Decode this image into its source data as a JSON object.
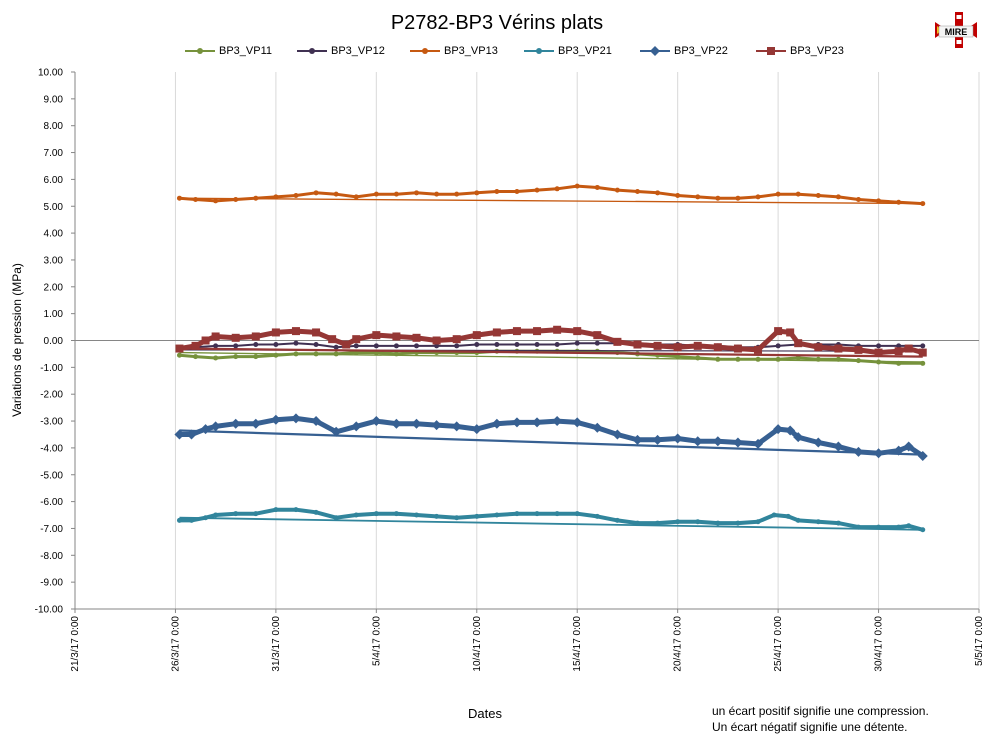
{
  "chart_data": {
    "type": "line",
    "title": "P2782-BP3 Vérins plats",
    "xlabel": "Dates",
    "ylabel": "Variations de pression (MPa)",
    "ylim": [
      -10,
      10
    ],
    "ytick_labels": [
      "10.00",
      "9.00",
      "8.00",
      "7.00",
      "6.00",
      "5.00",
      "4.00",
      "3.00",
      "2.00",
      "1.00",
      "0.00",
      "-1.00",
      "-2.00",
      "-3.00",
      "-4.00",
      "-5.00",
      "-6.00",
      "-7.00",
      "-8.00",
      "-9.00",
      "-10.00"
    ],
    "xlim_days": [
      0,
      45
    ],
    "xticks": [
      {
        "day": 0,
        "label": "21/3/17 0:00"
      },
      {
        "day": 5,
        "label": "26/3/17 0:00"
      },
      {
        "day": 10,
        "label": "31/3/17 0:00"
      },
      {
        "day": 15,
        "label": "5/4/17 0:00"
      },
      {
        "day": 20,
        "label": "10/4/17 0:00"
      },
      {
        "day": 25,
        "label": "15/4/17 0:00"
      },
      {
        "day": 30,
        "label": "20/4/17 0:00"
      },
      {
        "day": 35,
        "label": "25/4/17 0:00"
      },
      {
        "day": 40,
        "label": "30/4/17 0:00"
      },
      {
        "day": 45,
        "label": "5/5/17 0:00"
      }
    ],
    "grid": "vertical",
    "legend": "top",
    "series": [
      {
        "name": "BP3_VP11",
        "color": "#76923c",
        "marker": "circle",
        "width": 3,
        "trend": [
          [
            5.2,
            -0.45
          ],
          [
            42.2,
            -0.8
          ]
        ],
        "points": [
          [
            5.2,
            -0.55
          ],
          [
            6,
            -0.6
          ],
          [
            7,
            -0.65
          ],
          [
            8,
            -0.6
          ],
          [
            9,
            -0.6
          ],
          [
            10,
            -0.55
          ],
          [
            11,
            -0.5
          ],
          [
            12,
            -0.5
          ],
          [
            13,
            -0.5
          ],
          [
            14,
            -0.45
          ],
          [
            15,
            -0.45
          ],
          [
            16,
            -0.5
          ],
          [
            17,
            -0.45
          ],
          [
            18,
            -0.45
          ],
          [
            19,
            -0.45
          ],
          [
            20,
            -0.45
          ],
          [
            21,
            -0.4
          ],
          [
            22,
            -0.4
          ],
          [
            23,
            -0.4
          ],
          [
            24,
            -0.4
          ],
          [
            25,
            -0.4
          ],
          [
            26,
            -0.4
          ],
          [
            27,
            -0.45
          ],
          [
            28,
            -0.5
          ],
          [
            29,
            -0.55
          ],
          [
            30,
            -0.6
          ],
          [
            31,
            -0.65
          ],
          [
            32,
            -0.7
          ],
          [
            33,
            -0.7
          ],
          [
            34,
            -0.7
          ],
          [
            35,
            -0.7
          ],
          [
            36,
            -0.65
          ],
          [
            37,
            -0.7
          ],
          [
            38,
            -0.7
          ],
          [
            39,
            -0.75
          ],
          [
            40,
            -0.8
          ],
          [
            41,
            -0.85
          ],
          [
            42.2,
            -0.85
          ]
        ]
      },
      {
        "name": "BP3_VP12",
        "color": "#403152",
        "marker": "circle",
        "width": 2,
        "trend": [
          [
            5.2,
            -0.35
          ],
          [
            42.2,
            -0.4
          ]
        ],
        "points": [
          [
            5.2,
            -0.3
          ],
          [
            6,
            -0.25
          ],
          [
            7,
            -0.2
          ],
          [
            8,
            -0.2
          ],
          [
            9,
            -0.15
          ],
          [
            10,
            -0.15
          ],
          [
            11,
            -0.1
          ],
          [
            12,
            -0.15
          ],
          [
            13,
            -0.25
          ],
          [
            14,
            -0.2
          ],
          [
            15,
            -0.2
          ],
          [
            16,
            -0.2
          ],
          [
            17,
            -0.2
          ],
          [
            18,
            -0.2
          ],
          [
            19,
            -0.2
          ],
          [
            20,
            -0.15
          ],
          [
            21,
            -0.15
          ],
          [
            22,
            -0.15
          ],
          [
            23,
            -0.15
          ],
          [
            24,
            -0.15
          ],
          [
            25,
            -0.1
          ],
          [
            26,
            -0.1
          ],
          [
            27,
            -0.1
          ],
          [
            28,
            -0.1
          ],
          [
            29,
            -0.15
          ],
          [
            30,
            -0.15
          ],
          [
            31,
            -0.2
          ],
          [
            32,
            -0.2
          ],
          [
            33,
            -0.25
          ],
          [
            34,
            -0.25
          ],
          [
            35,
            -0.2
          ],
          [
            36,
            -0.15
          ],
          [
            37,
            -0.15
          ],
          [
            38,
            -0.15
          ],
          [
            39,
            -0.2
          ],
          [
            40,
            -0.2
          ],
          [
            41,
            -0.2
          ],
          [
            42.2,
            -0.2
          ]
        ]
      },
      {
        "name": "BP3_VP13",
        "color": "#c65911",
        "marker": "circle",
        "width": 3,
        "trend": [
          [
            5.2,
            5.3
          ],
          [
            42.2,
            5.1
          ]
        ],
        "points": [
          [
            5.2,
            5.3
          ],
          [
            6,
            5.25
          ],
          [
            7,
            5.2
          ],
          [
            8,
            5.25
          ],
          [
            9,
            5.3
          ],
          [
            10,
            5.35
          ],
          [
            11,
            5.4
          ],
          [
            12,
            5.5
          ],
          [
            13,
            5.45
          ],
          [
            14,
            5.35
          ],
          [
            15,
            5.45
          ],
          [
            16,
            5.45
          ],
          [
            17,
            5.5
          ],
          [
            18,
            5.45
          ],
          [
            19,
            5.45
          ],
          [
            20,
            5.5
          ],
          [
            21,
            5.55
          ],
          [
            22,
            5.55
          ],
          [
            23,
            5.6
          ],
          [
            24,
            5.65
          ],
          [
            25,
            5.75
          ],
          [
            26,
            5.7
          ],
          [
            27,
            5.6
          ],
          [
            28,
            5.55
          ],
          [
            29,
            5.5
          ],
          [
            30,
            5.4
          ],
          [
            31,
            5.35
          ],
          [
            32,
            5.3
          ],
          [
            33,
            5.3
          ],
          [
            34,
            5.35
          ],
          [
            35,
            5.45
          ],
          [
            36,
            5.45
          ],
          [
            37,
            5.4
          ],
          [
            38,
            5.35
          ],
          [
            39,
            5.25
          ],
          [
            40,
            5.2
          ],
          [
            41,
            5.15
          ],
          [
            42.2,
            5.1
          ]
        ]
      },
      {
        "name": "BP3_VP21",
        "color": "#31859c",
        "marker": "circle",
        "width": 4,
        "trend": [
          [
            5.2,
            -6.6
          ],
          [
            42.2,
            -7.05
          ]
        ],
        "points": [
          [
            5.2,
            -6.7
          ],
          [
            5.8,
            -6.7
          ],
          [
            6.5,
            -6.6
          ],
          [
            7,
            -6.5
          ],
          [
            8,
            -6.45
          ],
          [
            9,
            -6.45
          ],
          [
            10,
            -6.3
          ],
          [
            11,
            -6.3
          ],
          [
            12,
            -6.4
          ],
          [
            13,
            -6.6
          ],
          [
            14,
            -6.5
          ],
          [
            15,
            -6.45
          ],
          [
            16,
            -6.45
          ],
          [
            17,
            -6.5
          ],
          [
            18,
            -6.55
          ],
          [
            19,
            -6.6
          ],
          [
            20,
            -6.55
          ],
          [
            21,
            -6.5
          ],
          [
            22,
            -6.45
          ],
          [
            23,
            -6.45
          ],
          [
            24,
            -6.45
          ],
          [
            25,
            -6.45
          ],
          [
            26,
            -6.55
          ],
          [
            27,
            -6.7
          ],
          [
            28,
            -6.8
          ],
          [
            29,
            -6.8
          ],
          [
            30,
            -6.75
          ],
          [
            31,
            -6.75
          ],
          [
            32,
            -6.8
          ],
          [
            33,
            -6.8
          ],
          [
            34,
            -6.75
          ],
          [
            34.8,
            -6.5
          ],
          [
            35.5,
            -6.55
          ],
          [
            36,
            -6.7
          ],
          [
            37,
            -6.75
          ],
          [
            38,
            -6.8
          ],
          [
            39,
            -6.95
          ],
          [
            40,
            -6.95
          ],
          [
            41,
            -6.95
          ],
          [
            41.5,
            -6.9
          ],
          [
            42.2,
            -7.05
          ]
        ]
      },
      {
        "name": "BP3_VP22",
        "color": "#376092",
        "marker": "diamond",
        "width": 5,
        "trend": [
          [
            5.2,
            -3.35
          ],
          [
            42.2,
            -4.25
          ]
        ],
        "points": [
          [
            5.2,
            -3.5
          ],
          [
            5.8,
            -3.5
          ],
          [
            6.5,
            -3.3
          ],
          [
            7,
            -3.2
          ],
          [
            8,
            -3.1
          ],
          [
            9,
            -3.1
          ],
          [
            10,
            -2.95
          ],
          [
            11,
            -2.9
          ],
          [
            12,
            -3.0
          ],
          [
            13,
            -3.4
          ],
          [
            14,
            -3.2
          ],
          [
            15,
            -3.0
          ],
          [
            16,
            -3.1
          ],
          [
            17,
            -3.1
          ],
          [
            18,
            -3.15
          ],
          [
            19,
            -3.2
          ],
          [
            20,
            -3.3
          ],
          [
            21,
            -3.1
          ],
          [
            22,
            -3.05
          ],
          [
            23,
            -3.05
          ],
          [
            24,
            -3.0
          ],
          [
            25,
            -3.05
          ],
          [
            26,
            -3.25
          ],
          [
            27,
            -3.5
          ],
          [
            28,
            -3.7
          ],
          [
            29,
            -3.7
          ],
          [
            30,
            -3.65
          ],
          [
            31,
            -3.75
          ],
          [
            32,
            -3.75
          ],
          [
            33,
            -3.8
          ],
          [
            34,
            -3.85
          ],
          [
            35,
            -3.3
          ],
          [
            35.6,
            -3.35
          ],
          [
            36,
            -3.6
          ],
          [
            37,
            -3.8
          ],
          [
            38,
            -3.95
          ],
          [
            39,
            -4.15
          ],
          [
            40,
            -4.2
          ],
          [
            41,
            -4.1
          ],
          [
            41.5,
            -3.95
          ],
          [
            42.2,
            -4.3
          ]
        ]
      },
      {
        "name": "BP3_VP23",
        "color": "#953735",
        "marker": "square",
        "width": 5,
        "trend": [
          [
            5.2,
            -0.3
          ],
          [
            42.2,
            -0.6
          ]
        ],
        "points": [
          [
            5.2,
            -0.3
          ],
          [
            6,
            -0.2
          ],
          [
            6.5,
            0.0
          ],
          [
            7,
            0.15
          ],
          [
            8,
            0.1
          ],
          [
            9,
            0.15
          ],
          [
            10,
            0.3
          ],
          [
            11,
            0.35
          ],
          [
            12,
            0.3
          ],
          [
            12.8,
            0.05
          ],
          [
            13.5,
            -0.15
          ],
          [
            14,
            0.05
          ],
          [
            15,
            0.2
          ],
          [
            16,
            0.15
          ],
          [
            17,
            0.1
          ],
          [
            18,
            0.0
          ],
          [
            19,
            0.05
          ],
          [
            20,
            0.2
          ],
          [
            21,
            0.3
          ],
          [
            22,
            0.35
          ],
          [
            23,
            0.35
          ],
          [
            24,
            0.4
          ],
          [
            25,
            0.35
          ],
          [
            26,
            0.2
          ],
          [
            27,
            -0.05
          ],
          [
            28,
            -0.15
          ],
          [
            29,
            -0.2
          ],
          [
            30,
            -0.25
          ],
          [
            31,
            -0.2
          ],
          [
            32,
            -0.25
          ],
          [
            33,
            -0.3
          ],
          [
            34,
            -0.35
          ],
          [
            35,
            0.35
          ],
          [
            35.6,
            0.3
          ],
          [
            36,
            -0.1
          ],
          [
            37,
            -0.25
          ],
          [
            38,
            -0.3
          ],
          [
            39,
            -0.35
          ],
          [
            40,
            -0.45
          ],
          [
            41,
            -0.4
          ],
          [
            41.5,
            -0.3
          ],
          [
            42.2,
            -0.45
          ]
        ]
      }
    ]
  },
  "logo": {
    "text": "MIRE"
  },
  "notes": {
    "line1": "un écart positif signifie une compression.",
    "line2": "Un écart négatif  signifie une détente."
  }
}
